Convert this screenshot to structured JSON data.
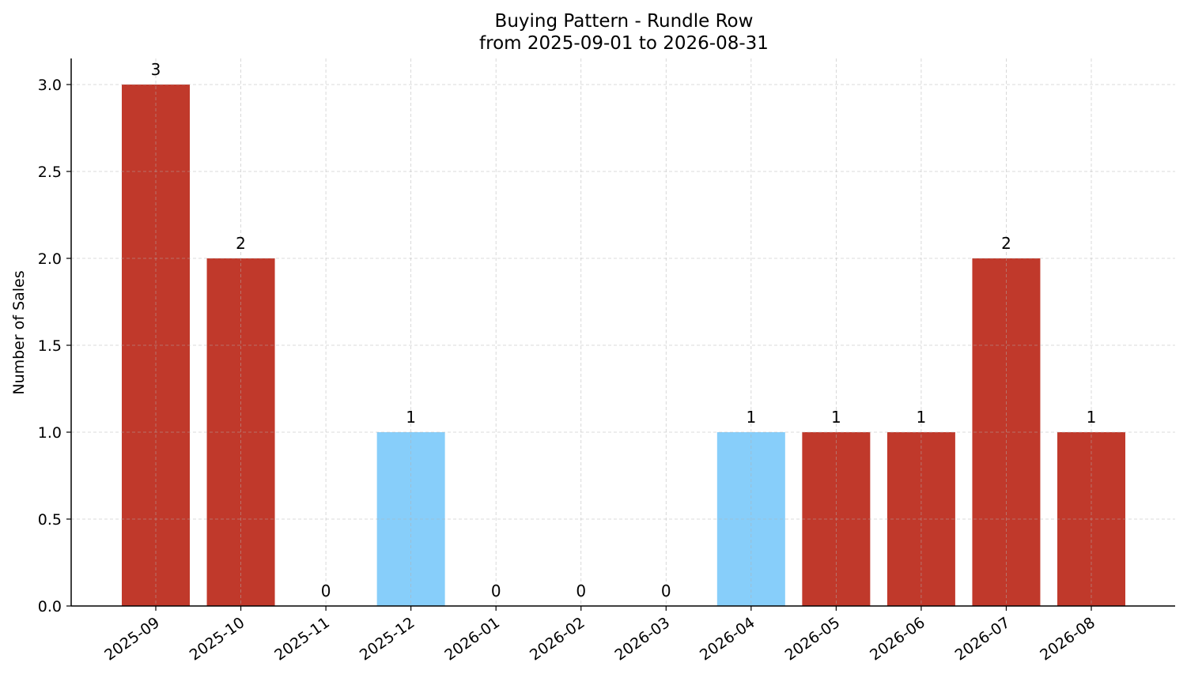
{
  "chart_data": {
    "type": "bar",
    "title": "Buying Pattern - Rundle Row",
    "subtitle": "from 2025-09-01 to 2026-08-31",
    "xlabel": "",
    "ylabel": "Number of Sales",
    "categories": [
      "2025-09",
      "2025-10",
      "2025-11",
      "2025-12",
      "2026-01",
      "2026-02",
      "2026-03",
      "2026-04",
      "2026-05",
      "2026-06",
      "2026-07",
      "2026-08"
    ],
    "values": [
      3,
      2,
      0,
      1,
      0,
      0,
      0,
      1,
      1,
      1,
      2,
      1
    ],
    "data_labels": [
      "3",
      "2",
      "0",
      "1",
      "0",
      "0",
      "0",
      "1",
      "1",
      "1",
      "2",
      "1"
    ],
    "bar_colors": [
      "#c0392b",
      "#c0392b",
      "#c0392b",
      "#87cefa",
      "#c0392b",
      "#c0392b",
      "#c0392b",
      "#87cefa",
      "#c0392b",
      "#c0392b",
      "#c0392b",
      "#c0392b"
    ],
    "ylim": [
      0,
      3.15
    ],
    "yticks": [
      0.0,
      0.5,
      1.0,
      1.5,
      2.0,
      2.5,
      3.0
    ],
    "ytick_labels": [
      "0.0",
      "0.5",
      "1.0",
      "1.5",
      "2.0",
      "2.5",
      "3.0"
    ],
    "grid": true,
    "legend": "none"
  }
}
